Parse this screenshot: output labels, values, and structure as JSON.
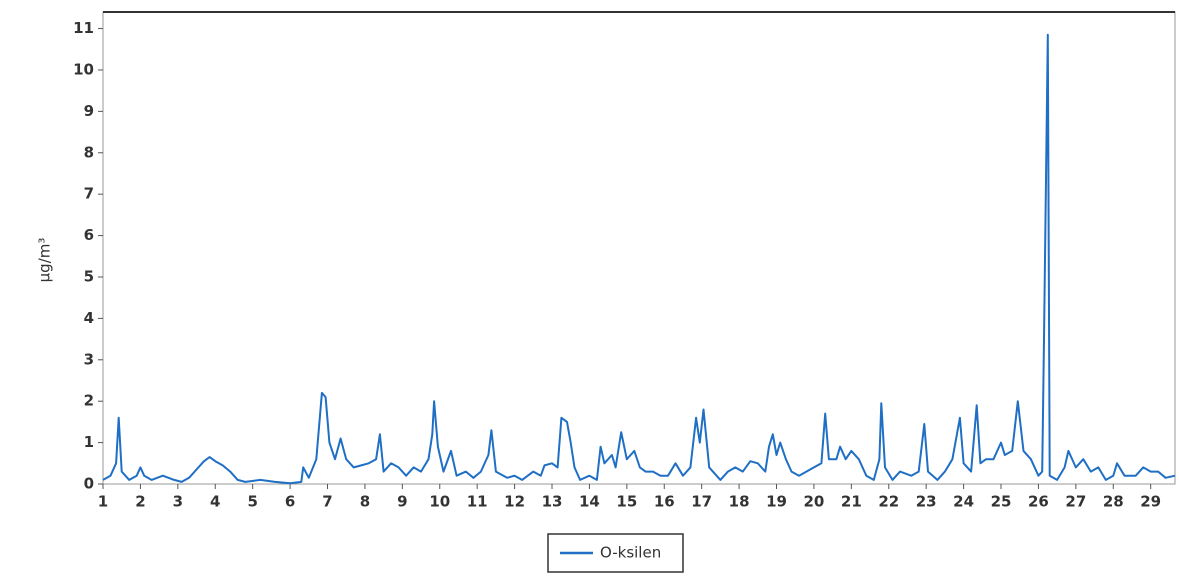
{
  "chart_data": {
    "type": "line",
    "y_label": "µg/m³",
    "x": [
      1.0,
      1.2,
      1.35,
      1.42,
      1.5,
      1.7,
      1.9,
      2.0,
      2.1,
      2.3,
      2.6,
      2.9,
      3.1,
      3.3,
      3.5,
      3.7,
      3.85,
      4.0,
      4.2,
      4.4,
      4.6,
      4.8,
      5.2,
      5.6,
      6.0,
      6.3,
      6.35,
      6.5,
      6.7,
      6.85,
      6.95,
      7.05,
      7.2,
      7.35,
      7.5,
      7.7,
      7.9,
      8.1,
      8.3,
      8.4,
      8.5,
      8.7,
      8.9,
      9.1,
      9.3,
      9.5,
      9.7,
      9.8,
      9.85,
      9.95,
      10.1,
      10.3,
      10.45,
      10.7,
      10.9,
      11.1,
      11.3,
      11.38,
      11.5,
      11.8,
      12.0,
      12.2,
      12.5,
      12.7,
      12.8,
      13.0,
      13.15,
      13.25,
      13.4,
      13.5,
      13.6,
      13.75,
      14.0,
      14.2,
      14.3,
      14.4,
      14.6,
      14.7,
      14.85,
      15.0,
      15.2,
      15.35,
      15.5,
      15.7,
      15.9,
      16.1,
      16.3,
      16.5,
      16.7,
      16.85,
      16.95,
      17.05,
      17.2,
      17.5,
      17.7,
      17.9,
      18.1,
      18.3,
      18.5,
      18.7,
      18.8,
      18.9,
      19.0,
      19.1,
      19.25,
      19.4,
      19.6,
      19.8,
      20.0,
      20.2,
      20.3,
      20.4,
      20.6,
      20.7,
      20.85,
      21.0,
      21.2,
      21.4,
      21.6,
      21.75,
      21.8,
      21.9,
      22.1,
      22.3,
      22.6,
      22.8,
      22.95,
      23.05,
      23.3,
      23.5,
      23.7,
      23.9,
      24.0,
      24.2,
      24.35,
      24.45,
      24.6,
      24.8,
      25.0,
      25.1,
      25.3,
      25.45,
      25.6,
      25.8,
      26.0,
      26.1,
      26.15,
      26.25,
      26.3,
      26.5,
      26.7,
      26.8,
      27.0,
      27.2,
      27.4,
      27.6,
      27.8,
      28.0,
      28.1,
      28.3,
      28.6,
      28.8,
      29.0,
      29.2,
      29.4,
      29.65
    ],
    "series": [
      {
        "name": "O-ksilen",
        "color": "#1f6fc5",
        "values": [
          0.1,
          0.2,
          0.5,
          1.6,
          0.3,
          0.1,
          0.2,
          0.4,
          0.2,
          0.1,
          0.2,
          0.1,
          0.05,
          0.15,
          0.35,
          0.55,
          0.65,
          0.55,
          0.45,
          0.3,
          0.1,
          0.05,
          0.1,
          0.05,
          0.02,
          0.05,
          0.4,
          0.15,
          0.6,
          2.2,
          2.1,
          1.0,
          0.6,
          1.1,
          0.6,
          0.4,
          0.45,
          0.5,
          0.6,
          1.2,
          0.3,
          0.5,
          0.4,
          0.2,
          0.4,
          0.3,
          0.6,
          1.2,
          2.0,
          0.9,
          0.3,
          0.8,
          0.2,
          0.3,
          0.15,
          0.3,
          0.7,
          1.3,
          0.3,
          0.15,
          0.2,
          0.1,
          0.3,
          0.2,
          0.45,
          0.5,
          0.4,
          1.6,
          1.5,
          1.0,
          0.4,
          0.1,
          0.2,
          0.1,
          0.9,
          0.5,
          0.7,
          0.4,
          1.25,
          0.6,
          0.8,
          0.4,
          0.3,
          0.3,
          0.2,
          0.2,
          0.5,
          0.2,
          0.4,
          1.6,
          1.0,
          1.8,
          0.4,
          0.1,
          0.3,
          0.4,
          0.3,
          0.55,
          0.5,
          0.3,
          0.9,
          1.2,
          0.7,
          1.0,
          0.6,
          0.3,
          0.2,
          0.3,
          0.4,
          0.5,
          1.7,
          0.6,
          0.6,
          0.9,
          0.6,
          0.8,
          0.6,
          0.2,
          0.1,
          0.6,
          1.95,
          0.4,
          0.1,
          0.3,
          0.2,
          0.3,
          1.45,
          0.3,
          0.1,
          0.3,
          0.6,
          1.6,
          0.5,
          0.3,
          1.9,
          0.5,
          0.6,
          0.6,
          1.0,
          0.7,
          0.8,
          2.0,
          0.8,
          0.6,
          0.2,
          0.3,
          3.5,
          10.85,
          0.2,
          0.1,
          0.4,
          0.8,
          0.4,
          0.6,
          0.3,
          0.4,
          0.1,
          0.2,
          0.5,
          0.2,
          0.2,
          0.4,
          0.3,
          0.3,
          0.15,
          0.2
        ]
      }
    ],
    "xlim": [
      1,
      29.65
    ],
    "xticks": [
      1,
      2,
      3,
      4,
      5,
      6,
      7,
      8,
      9,
      10,
      11,
      12,
      13,
      14,
      15,
      16,
      17,
      18,
      19,
      20,
      21,
      22,
      23,
      24,
      25,
      26,
      27,
      28,
      29
    ],
    "ylim": [
      0,
      11.4
    ],
    "yticks": [
      0,
      1,
      2,
      3,
      4,
      5,
      6,
      7,
      8,
      9,
      10,
      11
    ],
    "legend": "bottom"
  }
}
